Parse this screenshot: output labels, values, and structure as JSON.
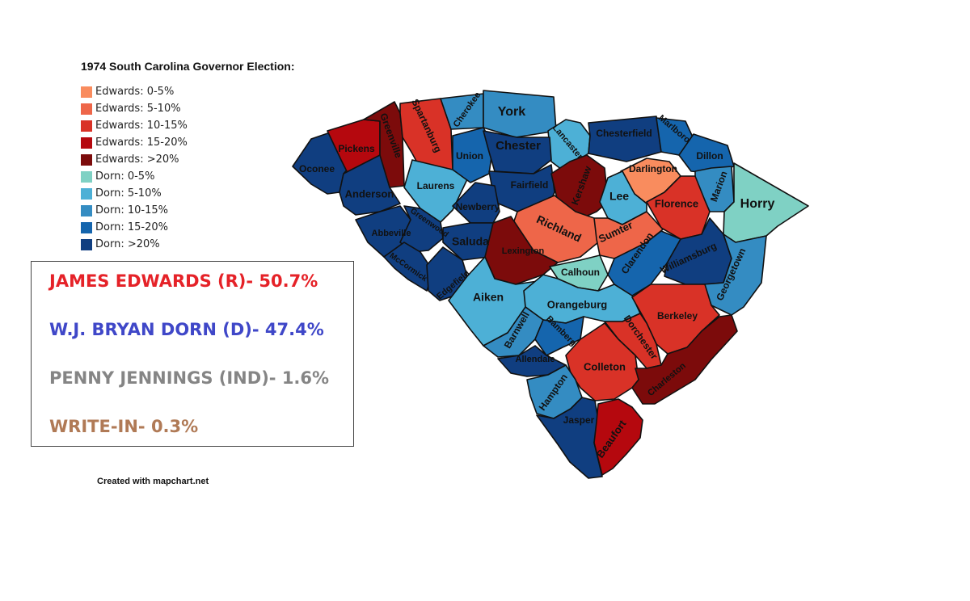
{
  "title": "1974 South Carolina Governor Election:",
  "legend": [
    {
      "label": "Edwards: 0-5%",
      "color": "#f98c5e"
    },
    {
      "label": "Edwards: 5-10%",
      "color": "#ee6649"
    },
    {
      "label": "Edwards: 10-15%",
      "color": "#d93227"
    },
    {
      "label": "Edwards: 15-20%",
      "color": "#b5080e"
    },
    {
      "label": "Edwards: >20%",
      "color": "#7c0b0b"
    },
    {
      "label": "Dorn: 0-5%",
      "color": "#7fd1c4"
    },
    {
      "label": "Dorn: 5-10%",
      "color": "#4db0d6"
    },
    {
      "label": "Dorn: 10-15%",
      "color": "#348cc2"
    },
    {
      "label": "Dorn: 15-20%",
      "color": "#1565ad"
    },
    {
      "label": "Dorn: >20%",
      "color": "#103e80"
    }
  ],
  "results": [
    {
      "text": "JAMES EDWARDS (R)- 50.7%",
      "color": "#e52228"
    },
    {
      "text": "W.J. BRYAN DORN (D)- 47.4%",
      "color": "#3f47c8"
    },
    {
      "text": "PENNY JENNINGS (IND)- 1.6%",
      "color": "#858585"
    },
    {
      "text": "WRITE-IN- 0.3%",
      "color": "#b07a56"
    }
  ],
  "credit": "Created with mapchart.net",
  "counties": [
    {
      "name": "Oconee",
      "category": "Dorn: >20%"
    },
    {
      "name": "Pickens",
      "category": "Edwards: 15-20%"
    },
    {
      "name": "Greenville",
      "category": "Edwards: >20%"
    },
    {
      "name": "Spartanburg",
      "category": "Edwards: 10-15%"
    },
    {
      "name": "Cherokee",
      "category": "Dorn: 10-15%"
    },
    {
      "name": "York",
      "category": "Dorn: 10-15%"
    },
    {
      "name": "Lancaster",
      "category": "Dorn: 5-10%"
    },
    {
      "name": "Chesterfield",
      "category": "Dorn: >20%"
    },
    {
      "name": "Marlboro",
      "category": "Dorn: 15-20%"
    },
    {
      "name": "Dillon",
      "category": "Dorn: 15-20%"
    },
    {
      "name": "Anderson",
      "category": "Dorn: >20%"
    },
    {
      "name": "Laurens",
      "category": "Dorn: 5-10%"
    },
    {
      "name": "Union",
      "category": "Dorn: 15-20%"
    },
    {
      "name": "Chester",
      "category": "Dorn: >20%"
    },
    {
      "name": "Fairfield",
      "category": "Dorn: >20%"
    },
    {
      "name": "Kershaw",
      "category": "Edwards: >20%"
    },
    {
      "name": "Darlington",
      "category": "Edwards: 0-5%"
    },
    {
      "name": "Marion",
      "category": "Dorn: 10-15%"
    },
    {
      "name": "Horry",
      "category": "Dorn: 0-5%"
    },
    {
      "name": "Lee",
      "category": "Dorn: 5-10%"
    },
    {
      "name": "Florence",
      "category": "Edwards: 10-15%"
    },
    {
      "name": "Abbeville",
      "category": "Dorn: >20%"
    },
    {
      "name": "Greenwood",
      "category": "Dorn: >20%"
    },
    {
      "name": "Newberry",
      "category": "Dorn: >20%"
    },
    {
      "name": "Saluda",
      "category": "Dorn: >20%"
    },
    {
      "name": "McCormick",
      "category": "Dorn: >20%"
    },
    {
      "name": "Edgefield",
      "category": "Dorn: >20%"
    },
    {
      "name": "Richland",
      "category": "Edwards: 5-10%"
    },
    {
      "name": "Lexington",
      "category": "Edwards: >20%"
    },
    {
      "name": "Sumter",
      "category": "Edwards: 5-10%"
    },
    {
      "name": "Calhoun",
      "category": "Dorn: 0-5%"
    },
    {
      "name": "Clarendon",
      "category": "Dorn: 15-20%"
    },
    {
      "name": "Williamsburg",
      "category": "Dorn: >20%"
    },
    {
      "name": "Georgetown",
      "category": "Dorn: 10-15%"
    },
    {
      "name": "Aiken",
      "category": "Dorn: 5-10%"
    },
    {
      "name": "Orangeburg",
      "category": "Dorn: 5-10%"
    },
    {
      "name": "Barnwell",
      "category": "Dorn: 10-15%"
    },
    {
      "name": "Bamberg",
      "category": "Dorn: 15-20%"
    },
    {
      "name": "Allendale",
      "category": "Dorn: >20%"
    },
    {
      "name": "Berkeley",
      "category": "Edwards: 10-15%"
    },
    {
      "name": "Dorchester",
      "category": "Edwards: 10-15%"
    },
    {
      "name": "Colleton",
      "category": "Edwards: 10-15%"
    },
    {
      "name": "Charleston",
      "category": "Edwards: >20%"
    },
    {
      "name": "Hampton",
      "category": "Dorn: 10-15%"
    },
    {
      "name": "Jasper",
      "category": "Dorn: >20%"
    },
    {
      "name": "Beaufort",
      "category": "Edwards: 15-20%"
    }
  ]
}
